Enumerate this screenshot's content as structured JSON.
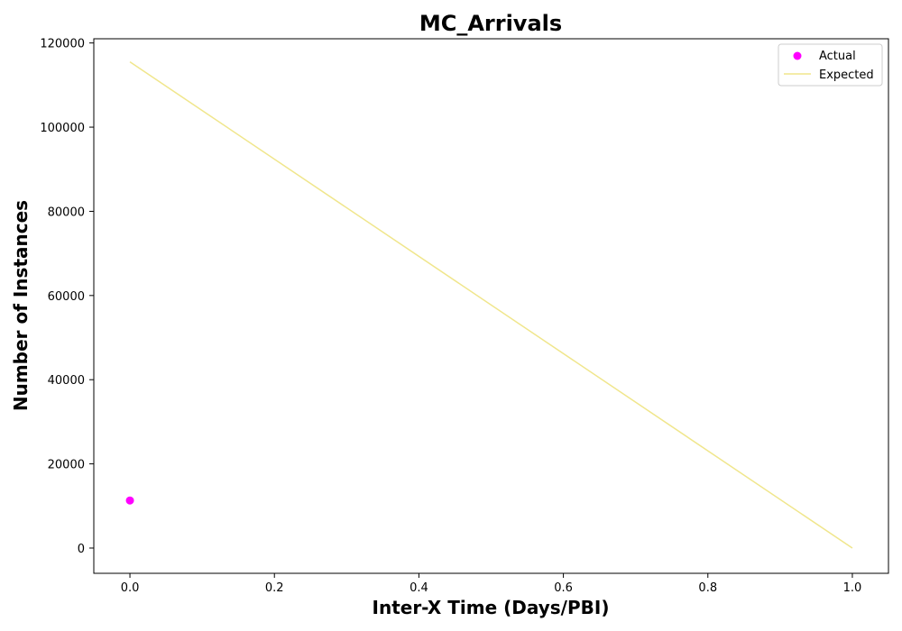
{
  "chart_data": {
    "type": "scatter",
    "title": "MC_Arrivals",
    "xlabel": "Inter-X Time (Days/PBI)",
    "ylabel": "Number of Instances",
    "xlim": [
      -0.05,
      1.05
    ],
    "ylim": [
      -6000,
      121000
    ],
    "x_ticks": [
      0.0,
      0.2,
      0.4,
      0.6,
      0.8,
      1.0
    ],
    "x_tick_labels": [
      "0.0",
      "0.2",
      "0.4",
      "0.6",
      "0.8",
      "1.0"
    ],
    "y_ticks": [
      0,
      20000,
      40000,
      60000,
      80000,
      100000,
      120000
    ],
    "y_tick_labels": [
      "0",
      "20000",
      "40000",
      "60000",
      "80000",
      "100000",
      "120000"
    ],
    "grid": false,
    "legend_position": "top-right",
    "series": [
      {
        "name": "Actual",
        "kind": "scatter",
        "color": "#ff00ff",
        "points": [
          {
            "x": 0.0,
            "y": 11300
          }
        ]
      },
      {
        "name": "Expected",
        "kind": "line",
        "color": "#f0e68c",
        "points": [
          {
            "x": 0.0,
            "y": 115500
          },
          {
            "x": 1.0,
            "y": 0
          }
        ]
      }
    ]
  }
}
